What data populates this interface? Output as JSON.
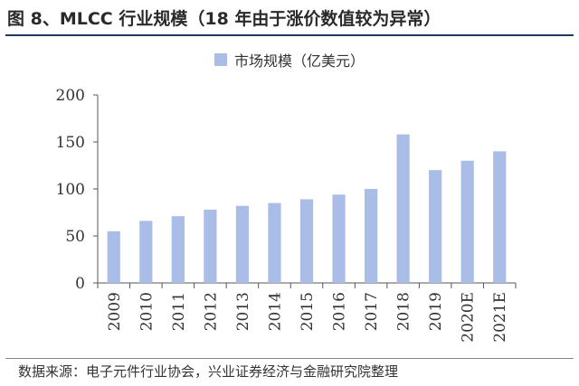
{
  "title": "图 8、MLCC 行业规模（18 年由于涨价数值较为异常）",
  "source": "数据来源：电子元件行业协会，兴业证券经济与金融研究院整理",
  "chart_data": {
    "type": "bar",
    "categories": [
      "2009",
      "2010",
      "2011",
      "2012",
      "2013",
      "2014",
      "2015",
      "2016",
      "2017",
      "2018",
      "2019",
      "2020E",
      "2021E"
    ],
    "series": [
      {
        "name": "市场规模（亿美元）",
        "values": [
          55,
          66,
          71,
          78,
          82,
          85,
          89,
          94,
          100,
          158,
          120,
          130,
          140
        ]
      }
    ],
    "ylim": [
      0,
      200
    ],
    "yticks": [
      0,
      50,
      100,
      150,
      200
    ],
    "bar_color": "#a9bde6",
    "legend_position": "top-center",
    "grid": false
  }
}
